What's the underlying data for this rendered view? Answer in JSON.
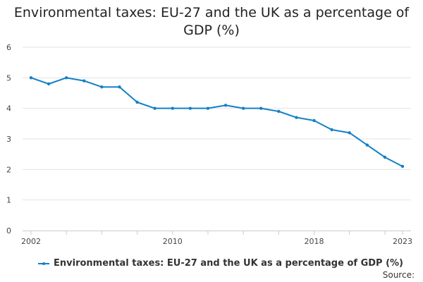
{
  "chart_data": {
    "type": "line",
    "title_lines": [
      "Environmental taxes: EU-27 and the UK as a percentage of",
      "GDP (%)"
    ],
    "x": [
      2002,
      2003,
      2004,
      2005,
      2006,
      2007,
      2008,
      2009,
      2010,
      2011,
      2012,
      2013,
      2014,
      2015,
      2016,
      2017,
      2018,
      2019,
      2020,
      2021,
      2022,
      2023
    ],
    "x_tick_labels": [
      "2002",
      "2010",
      "2018",
      "2023"
    ],
    "y_tick_labels": [
      "0",
      "1",
      "2",
      "3",
      "4",
      "5",
      "6"
    ],
    "ylim": [
      0,
      6
    ],
    "series": [
      {
        "name": "Environmental taxes: EU-27 and the UK as a percentage of GDP (%)",
        "color": "#1380c5",
        "values": [
          5.0,
          4.8,
          5.0,
          4.9,
          4.7,
          4.7,
          4.2,
          4.0,
          4.0,
          4.0,
          4.0,
          4.1,
          4.0,
          4.0,
          3.9,
          3.7,
          3.6,
          3.3,
          3.2,
          2.8,
          2.4,
          2.1
        ]
      }
    ],
    "legend_position": "bottom-left",
    "grid": true
  },
  "source_label": "Source:"
}
